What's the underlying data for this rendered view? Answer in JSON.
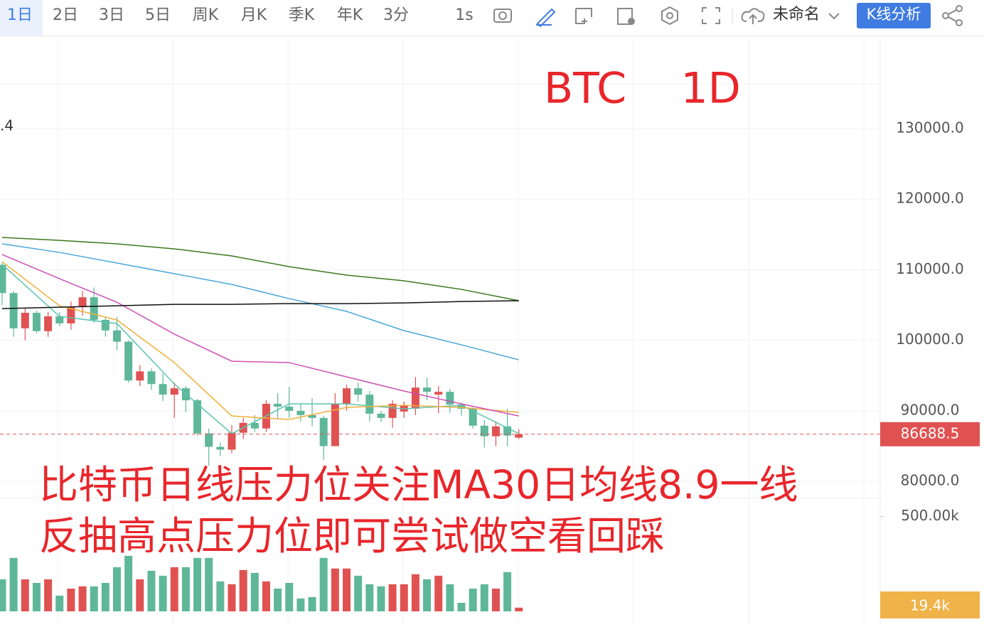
{
  "toolbar": {
    "periods": [
      "1日",
      "2日",
      "3日",
      "5日",
      "周K",
      "月K",
      "季K",
      "年K",
      "3分"
    ],
    "interval": "1s",
    "layout_name": "未命名",
    "analysis_button": "K线分析"
  },
  "chart_data": {
    "type": "candlestick",
    "title": "BTC    1D",
    "partial_label": ".4",
    "annotations": [
      "比特币日线压力位关注MA30日均线8.9一线",
      "反抽高点压力位即可尝试做空看回踩"
    ],
    "up_color": "#e05252",
    "down_color": "#5fb79a",
    "open": [
      110700,
      106700,
      101700,
      103900,
      101300,
      103400,
      102400,
      104700,
      106100,
      102900,
      101400,
      99800,
      94300,
      95600,
      93800,
      92300,
      93200,
      91500,
      86800,
      84900,
      84500,
      86900,
      88300,
      87500,
      91000,
      90600,
      90000,
      89400,
      89000,
      85000,
      91000,
      93200,
      92300,
      89600,
      89000,
      89900,
      90300,
      93300,
      92300,
      92700,
      90900,
      90300,
      87900,
      86400,
      87800,
      86200
    ],
    "high": [
      111000,
      107000,
      104500,
      104200,
      104000,
      104000,
      105500,
      107000,
      107500,
      103300,
      103300,
      100000,
      96500,
      96000,
      95300,
      94000,
      93500,
      91700,
      87500,
      85500,
      88000,
      89000,
      89400,
      91500,
      92500,
      93400,
      91000,
      91800,
      89300,
      92500,
      93700,
      94000,
      92800,
      90000,
      91500,
      91300,
      94800,
      94700,
      93500,
      93100,
      91200,
      90500,
      88700,
      88500,
      90300,
      87400
    ],
    "low": [
      105000,
      100500,
      100000,
      101000,
      100500,
      102000,
      101500,
      103500,
      102500,
      100500,
      98600,
      94000,
      93500,
      93000,
      91400,
      89000,
      89800,
      86500,
      82000,
      83600,
      84000,
      86000,
      87000,
      87000,
      88800,
      89000,
      88500,
      87800,
      83000,
      85000,
      90000,
      91300,
      88500,
      88400,
      87600,
      89000,
      89400,
      91500,
      89700,
      89700,
      89300,
      87500,
      84800,
      85000,
      85000,
      86000
    ],
    "close": [
      106700,
      101700,
      103900,
      101300,
      103400,
      102400,
      104700,
      106100,
      102900,
      101400,
      99800,
      94300,
      95600,
      93800,
      92300,
      93200,
      91500,
      86800,
      84900,
      84500,
      86900,
      88300,
      87500,
      91000,
      90600,
      90000,
      89400,
      89000,
      85000,
      91000,
      93200,
      92300,
      89600,
      89000,
      91000,
      90700,
      93300,
      92700,
      92700,
      90900,
      90300,
      87900,
      86400,
      87800,
      86500,
      86688.5
    ],
    "ylim": [
      77700,
      143000
    ],
    "yticks": [
      {
        "value": 80000,
        "label": "80000.0"
      },
      {
        "value": 90000,
        "label": "90000.0"
      },
      {
        "value": 100000,
        "label": "100000.0"
      },
      {
        "value": 110000,
        "label": "110000.0"
      },
      {
        "value": 120000,
        "label": "120000.0"
      },
      {
        "value": 130000,
        "label": "130000.0"
      }
    ],
    "ma_lines": [
      {
        "color": "#5cc3b0",
        "x": [
          0,
          5,
          10,
          15,
          20,
          25,
          30,
          35,
          40,
          45
        ],
        "values": [
          110750,
          103390,
          102380,
          93810,
          86760,
          90990,
          90990,
          90280,
          90790,
          86760
        ]
      },
      {
        "color": "#f0b03c",
        "x": [
          0,
          5,
          10,
          15,
          20,
          25,
          30,
          35,
          40,
          45
        ],
        "values": [
          111150,
          104900,
          102880,
          96840,
          89280,
          88770,
          90490,
          90790,
          90490,
          89780
        ]
      },
      {
        "color": "#d04fb4",
        "x": [
          0,
          5,
          10,
          15,
          20,
          25,
          30,
          35,
          40,
          45
        ],
        "values": [
          112160,
          108730,
          105400,
          100870,
          97040,
          96840,
          94820,
          92800,
          90990,
          89280
        ]
      },
      {
        "color": "#4aa8d8",
        "x": [
          0,
          5,
          10,
          15,
          20,
          25,
          30,
          35,
          40,
          45
        ],
        "values": [
          113670,
          112460,
          110950,
          109440,
          107920,
          105910,
          104100,
          101370,
          99360,
          97240
        ]
      },
      {
        "color": "#3d7a1e",
        "x": [
          0,
          5,
          10,
          15,
          20,
          25,
          30,
          35,
          40,
          45
        ],
        "values": [
          114580,
          114170,
          113670,
          112960,
          111960,
          110440,
          109240,
          108430,
          107220,
          105610
        ]
      },
      {
        "color": "#111111",
        "x": [
          0,
          5,
          10,
          15,
          20,
          25,
          30,
          35,
          40,
          45
        ],
        "values": [
          104490,
          104700,
          104900,
          105100,
          105100,
          105200,
          105200,
          105300,
          105500,
          105610
        ]
      }
    ],
    "volume": {
      "values": [
        169,
        282,
        169,
        150,
        169,
        83,
        120,
        132,
        132,
        150,
        233,
        293,
        169,
        214,
        188,
        233,
        233,
        282,
        282,
        158,
        143,
        218,
        203,
        158,
        120,
        150,
        68,
        75,
        282,
        226,
        226,
        188,
        143,
        132,
        143,
        143,
        196,
        169,
        188,
        143,
        45,
        120,
        143,
        120,
        207,
        19.4
      ],
      "value_labels": [
        null,
        null,
        null,
        null,
        null,
        null,
        null,
        null,
        null,
        null,
        null,
        null,
        null,
        null,
        null,
        null,
        null,
        null,
        null,
        null,
        null,
        null,
        null,
        null,
        null,
        null,
        null,
        null,
        null,
        null,
        null,
        null,
        null,
        null,
        null,
        null,
        null,
        null,
        null,
        null,
        null,
        null,
        null,
        null,
        null,
        "19.4k"
      ],
      "ylim": [
        0,
        600
      ],
      "yticks": [
        {
          "value": 500,
          "label": "500.00k"
        }
      ]
    }
  }
}
